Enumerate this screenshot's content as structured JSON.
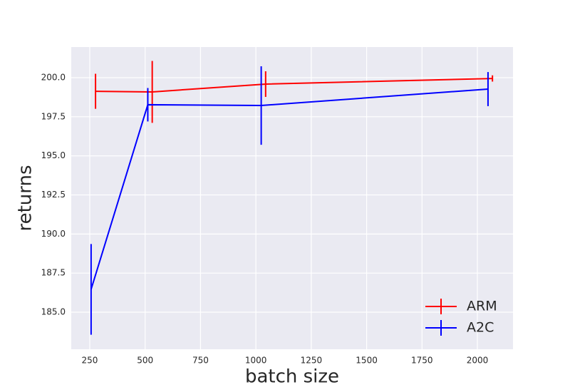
{
  "chart_data": {
    "type": "errorbar-line",
    "xlabel": "batch size",
    "ylabel": "returns",
    "xlim": [
      166.4,
      2160.8
    ],
    "xticks": [
      250,
      500,
      750,
      1000,
      1250,
      1500,
      1750,
      2000
    ],
    "ylim": [
      182.63,
      201.96
    ],
    "yticks": [
      {
        "value": 185,
        "label": "185.0"
      },
      {
        "value": 187.5,
        "label": "187.5"
      },
      {
        "value": 190,
        "label": "190.0"
      },
      {
        "value": 192.5,
        "label": "192.5"
      },
      {
        "value": 195,
        "label": "195.0"
      },
      {
        "value": 197.5,
        "label": "197.5"
      },
      {
        "value": 200,
        "label": "200.0"
      }
    ],
    "grid": true,
    "legend": "lower right",
    "series": [
      {
        "name": "ARM",
        "color": "#ff0000",
        "x": [
          276,
          532,
          1044,
          2068
        ],
        "values": [
          199.13,
          199.09,
          199.59,
          199.95
        ],
        "errors": [
          1.12,
          1.98,
          0.82,
          0.2
        ]
      },
      {
        "name": "A2C",
        "color": "#0000ff",
        "x": [
          256,
          512,
          1024,
          2048
        ],
        "values": [
          186.46,
          198.27,
          198.22,
          199.27
        ],
        "errors": [
          2.9,
          1.07,
          2.51,
          1.09
        ]
      }
    ]
  }
}
